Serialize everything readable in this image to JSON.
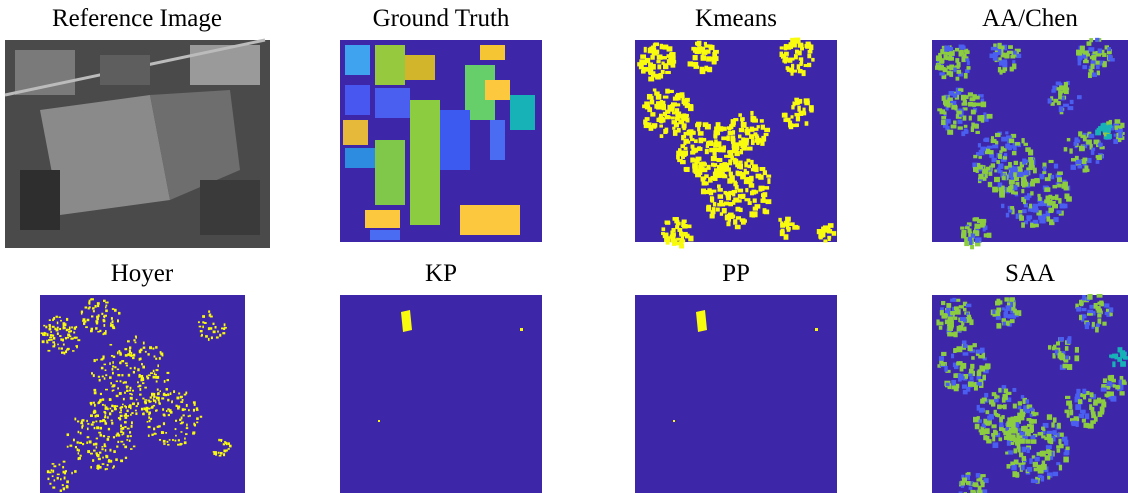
{
  "panels": [
    {
      "title": "Reference Image"
    },
    {
      "title": "Ground Truth"
    },
    {
      "title": "Kmeans"
    },
    {
      "title": "AA/Chen"
    },
    {
      "title": "Hoyer"
    },
    {
      "title": "KP"
    },
    {
      "title": "PP"
    },
    {
      "title": "SAA"
    }
  ]
}
